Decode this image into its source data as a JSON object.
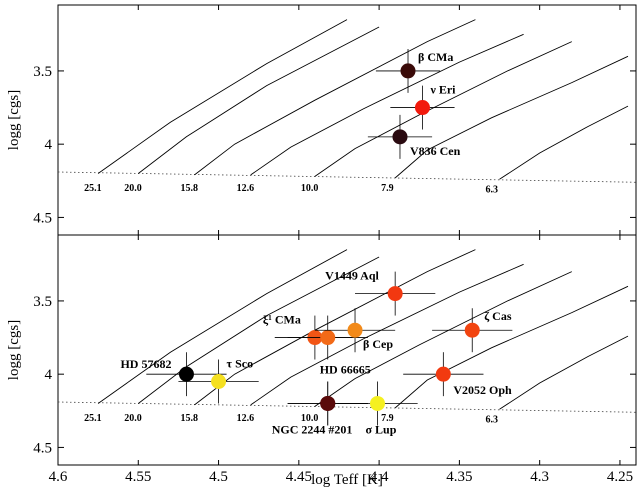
{
  "chart_data": {
    "type": "scatter",
    "xlabel": "log Teff [K]",
    "ylabel": "logg [cgs]",
    "xlim": [
      4.6,
      4.24
    ],
    "xticks": [
      "4.6",
      "4.55",
      "4.5",
      "4.45",
      "4.4",
      "4.35",
      "4.3",
      "4.25"
    ],
    "xtick_values": [
      4.6,
      4.55,
      4.5,
      4.45,
      4.4,
      4.35,
      4.3,
      4.25
    ],
    "yticks": [
      "3.5",
      "4",
      "4.5"
    ],
    "ytick_values": [
      3.5,
      4.0,
      4.5
    ],
    "ylim": [
      3.05,
      4.62
    ],
    "zams": [
      [
        4.6,
        4.19
      ],
      [
        4.24,
        4.26
      ]
    ],
    "panels": [
      {
        "name": "top",
        "tracks": [
          {
            "label": "25.1",
            "x": 4.575,
            "y": 4.23,
            "points": [
              [
                4.575,
                4.2
              ],
              [
                4.53,
                3.85
              ],
              [
                4.47,
                3.45
              ],
              [
                4.42,
                3.15
              ]
            ]
          },
          {
            "label": "20.0",
            "x": 4.55,
            "y": 4.23,
            "points": [
              [
                4.55,
                4.2
              ],
              [
                4.52,
                3.95
              ],
              [
                4.47,
                3.6
              ],
              [
                4.4,
                3.2
              ]
            ]
          },
          {
            "label": "15.8",
            "x": 4.515,
            "y": 4.23,
            "points": [
              [
                4.515,
                4.21
              ],
              [
                4.49,
                4.0
              ],
              [
                4.44,
                3.7
              ],
              [
                4.37,
                3.3
              ],
              [
                4.34,
                3.15
              ]
            ]
          },
          {
            "label": "12.6",
            "x": 4.48,
            "y": 4.23,
            "points": [
              [
                4.48,
                4.21
              ],
              [
                4.455,
                4.02
              ],
              [
                4.41,
                3.76
              ],
              [
                4.35,
                3.44
              ],
              [
                4.31,
                3.25
              ]
            ]
          },
          {
            "label": "10.0",
            "x": 4.44,
            "y": 4.23,
            "points": [
              [
                4.44,
                4.22
              ],
              [
                4.415,
                4.03
              ],
              [
                4.375,
                3.8
              ],
              [
                4.32,
                3.5
              ],
              [
                4.28,
                3.3
              ]
            ]
          },
          {
            "label": "7.9",
            "x": 4.39,
            "y": 4.23,
            "points": [
              [
                4.39,
                4.23
              ],
              [
                4.37,
                4.04
              ],
              [
                4.33,
                3.82
              ],
              [
                4.28,
                3.58
              ],
              [
                4.245,
                3.4
              ]
            ]
          },
          {
            "label": "6.3",
            "x": 4.325,
            "y": 4.24,
            "points": [
              [
                4.325,
                4.24
              ],
              [
                4.3,
                4.06
              ],
              [
                4.27,
                3.88
              ],
              [
                4.245,
                3.74
              ]
            ]
          }
        ],
        "stars": [
          {
            "name": "β CMa",
            "x": 4.382,
            "y": 3.5,
            "xerr": 0.02,
            "yerr": 0.15,
            "color": "#3a0a08",
            "label_dx": 10,
            "label_dy": -10
          },
          {
            "name": "ν Eri",
            "x": 4.373,
            "y": 3.75,
            "xerr": 0.02,
            "yerr": 0.15,
            "color": "#f21a0d",
            "label_dx": 8,
            "label_dy": -14
          },
          {
            "name": "V836 Cen",
            "x": 4.387,
            "y": 3.95,
            "xerr": 0.02,
            "yerr": 0.15,
            "color": "#2a0a10",
            "label_dx": 10,
            "label_dy": 18
          }
        ]
      },
      {
        "name": "bottom",
        "tracks": [
          {
            "label": "25.1",
            "x": 4.575,
            "y": 4.23,
            "points": [
              [
                4.575,
                4.2
              ],
              [
                4.53,
                3.85
              ],
              [
                4.47,
                3.45
              ],
              [
                4.42,
                3.15
              ]
            ]
          },
          {
            "label": "20.0",
            "x": 4.55,
            "y": 4.23,
            "points": [
              [
                4.55,
                4.2
              ],
              [
                4.52,
                3.95
              ],
              [
                4.47,
                3.6
              ],
              [
                4.4,
                3.2
              ]
            ]
          },
          {
            "label": "15.8",
            "x": 4.515,
            "y": 4.23,
            "points": [
              [
                4.515,
                4.21
              ],
              [
                4.49,
                4.0
              ],
              [
                4.44,
                3.7
              ],
              [
                4.37,
                3.3
              ],
              [
                4.34,
                3.15
              ]
            ]
          },
          {
            "label": "12.6",
            "x": 4.48,
            "y": 4.23,
            "points": [
              [
                4.48,
                4.21
              ],
              [
                4.455,
                4.02
              ],
              [
                4.41,
                3.76
              ],
              [
                4.35,
                3.44
              ],
              [
                4.31,
                3.25
              ]
            ]
          },
          {
            "label": "10.0",
            "x": 4.44,
            "y": 4.23,
            "points": [
              [
                4.44,
                4.22
              ],
              [
                4.415,
                4.03
              ],
              [
                4.375,
                3.8
              ],
              [
                4.32,
                3.5
              ],
              [
                4.28,
                3.3
              ]
            ]
          },
          {
            "label": "7.9",
            "x": 4.39,
            "y": 4.23,
            "points": [
              [
                4.39,
                4.23
              ],
              [
                4.37,
                4.04
              ],
              [
                4.33,
                3.82
              ],
              [
                4.28,
                3.58
              ],
              [
                4.245,
                3.4
              ]
            ]
          },
          {
            "label": "6.3",
            "x": 4.325,
            "y": 4.24,
            "points": [
              [
                4.325,
                4.24
              ],
              [
                4.3,
                4.06
              ],
              [
                4.27,
                3.88
              ],
              [
                4.245,
                3.74
              ]
            ]
          }
        ],
        "stars": [
          {
            "name": "V1449 Aql",
            "x": 4.39,
            "y": 3.45,
            "xerr": 0.025,
            "yerr": 0.15,
            "color": "#f23810",
            "label_dx": -70,
            "label_dy": -14
          },
          {
            "name": "ξ¹ CMa",
            "x": 4.44,
            "y": 3.75,
            "xerr": 0.025,
            "yerr": 0.15,
            "color": "#f25515",
            "label_dx": -52,
            "label_dy": -14
          },
          {
            "name": "",
            "x": 4.432,
            "y": 3.75,
            "xerr": 0.025,
            "yerr": 0.15,
            "color": "#f26a18",
            "label_dx": 0,
            "label_dy": 0
          },
          {
            "name": "β Cep",
            "x": 4.415,
            "y": 3.7,
            "xerr": 0.025,
            "yerr": 0.15,
            "color": "#f28a1a",
            "label_dx": 8,
            "label_dy": 18
          },
          {
            "name": "ζ Cas",
            "x": 4.342,
            "y": 3.7,
            "xerr": 0.025,
            "yerr": 0.15,
            "color": "#f24410",
            "label_dx": 12,
            "label_dy": -10
          },
          {
            "name": "HD 57682",
            "x": 4.52,
            "y": 4.0,
            "xerr": 0.025,
            "yerr": 0.15,
            "color": "#000000",
            "label_dx": -66,
            "label_dy": -6
          },
          {
            "name": "τ Sco",
            "x": 4.5,
            "y": 4.05,
            "xerr": 0.025,
            "yerr": 0.15,
            "color": "#f5e020",
            "label_dx": 8,
            "label_dy": -14
          },
          {
            "name": "HD 66665",
            "x": 4.432,
            "y": 4.2,
            "xerr": 0.025,
            "yerr": 0.15,
            "color": "#5a0a0a",
            "label_dx": -8,
            "label_dy": -30
          },
          {
            "name": "NGC 2244 #201",
            "x": 4.432,
            "y": 4.2,
            "xerr": 0.025,
            "yerr": 0.15,
            "color": "#5a0a0a",
            "label_dx": -56,
            "label_dy": 30
          },
          {
            "name": "σ Lup",
            "x": 4.401,
            "y": 4.2,
            "xerr": 0.025,
            "yerr": 0.15,
            "color": "#f5f020",
            "label_dx": -12,
            "label_dy": 30
          },
          {
            "name": "V2052 Oph",
            "x": 4.36,
            "y": 4.0,
            "xerr": 0.025,
            "yerr": 0.15,
            "color": "#f23a10",
            "label_dx": 10,
            "label_dy": 20
          }
        ]
      }
    ]
  }
}
